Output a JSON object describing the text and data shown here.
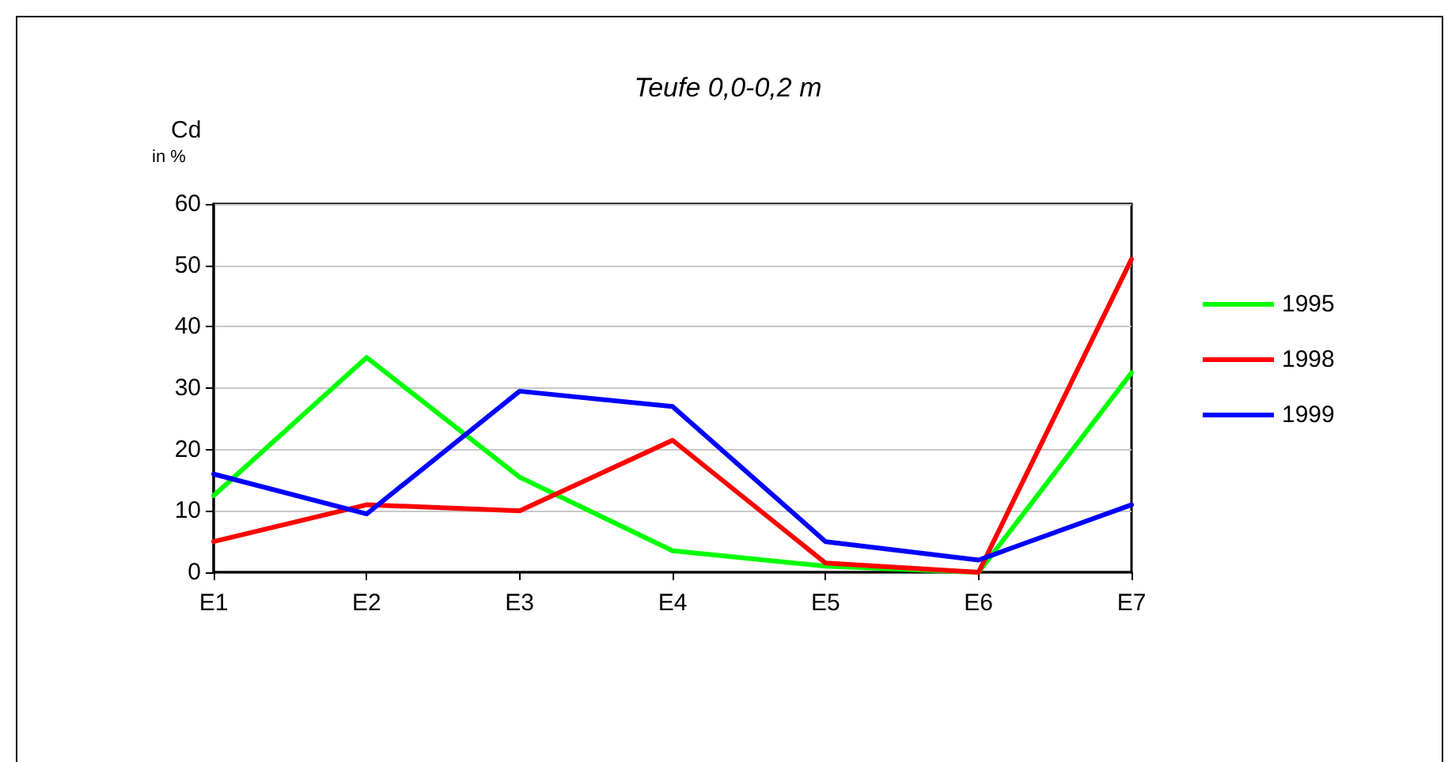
{
  "chart_data": {
    "type": "line",
    "title": "Teufe 0,0-0,2 m",
    "ylabel": "Cd",
    "annotations": [
      "in %"
    ],
    "categories": [
      "E1",
      "E2",
      "E3",
      "E4",
      "E5",
      "E6",
      "E7"
    ],
    "series": [
      {
        "name": "1995",
        "color": "#00ff00",
        "values": [
          12.5,
          35,
          15.5,
          3.5,
          1,
          0,
          32.5
        ]
      },
      {
        "name": "1998",
        "color": "#ff0000",
        "values": [
          5,
          11,
          10,
          21.5,
          1.5,
          0,
          51
        ]
      },
      {
        "name": "1999",
        "color": "#0000ff",
        "values": [
          16,
          9.5,
          29.5,
          27,
          5,
          2,
          11
        ]
      }
    ],
    "ylim": [
      0,
      60
    ],
    "yticks": [
      0,
      10,
      20,
      30,
      40,
      50,
      60
    ],
    "grid": "y",
    "legend": "right",
    "marker": "none",
    "line_style": "solid"
  }
}
